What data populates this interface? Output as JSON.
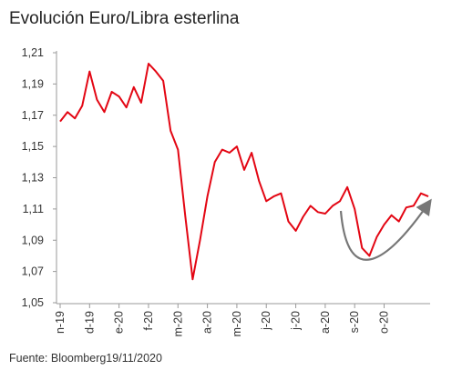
{
  "chart_data": {
    "type": "line",
    "title": "Evolución Euro/Libra esterlina",
    "source": "Fuente: Bloomberg19/11/2020",
    "categories": [
      "n-19",
      null,
      null,
      null,
      "d-19",
      null,
      null,
      null,
      "e-20",
      null,
      null,
      null,
      "f-20",
      null,
      null,
      null,
      "m-20",
      null,
      null,
      null,
      "a-20",
      null,
      null,
      null,
      "m-20",
      null,
      null,
      null,
      "j-20",
      null,
      null,
      null,
      "j-20",
      null,
      null,
      null,
      "a-20",
      null,
      null,
      null,
      "s-20",
      null,
      null,
      null,
      "o-20",
      null,
      null,
      null,
      null,
      null,
      null
    ],
    "series": [
      {
        "name": "EUR/GBP",
        "color": "#e30613",
        "values": [
          1.166,
          1.172,
          1.168,
          1.176,
          1.198,
          1.18,
          1.172,
          1.185,
          1.182,
          1.175,
          1.188,
          1.178,
          1.203,
          1.198,
          1.192,
          1.16,
          1.148,
          1.105,
          1.065,
          1.09,
          1.118,
          1.14,
          1.148,
          1.146,
          1.15,
          1.135,
          1.146,
          1.128,
          1.115,
          1.118,
          1.12,
          1.102,
          1.096,
          1.105,
          1.112,
          1.108,
          1.107,
          1.112,
          1.115,
          1.124,
          1.11,
          1.085,
          1.08,
          1.092,
          1.1,
          1.106,
          1.102,
          1.111,
          1.112,
          1.12,
          1.118
        ]
      }
    ],
    "ylim": [
      1.05,
      1.21
    ],
    "yticks": [
      {
        "value": 1.05,
        "label": "1,05"
      },
      {
        "value": 1.07,
        "label": "1,07"
      },
      {
        "value": 1.09,
        "label": "1,09"
      },
      {
        "value": 1.11,
        "label": "1,11"
      },
      {
        "value": 1.13,
        "label": "1,13"
      },
      {
        "value": 1.15,
        "label": "1,15"
      },
      {
        "value": 1.17,
        "label": "1,17"
      },
      {
        "value": 1.19,
        "label": "1,19"
      },
      {
        "value": 1.21,
        "label": "1,21"
      }
    ],
    "grid": false
  }
}
